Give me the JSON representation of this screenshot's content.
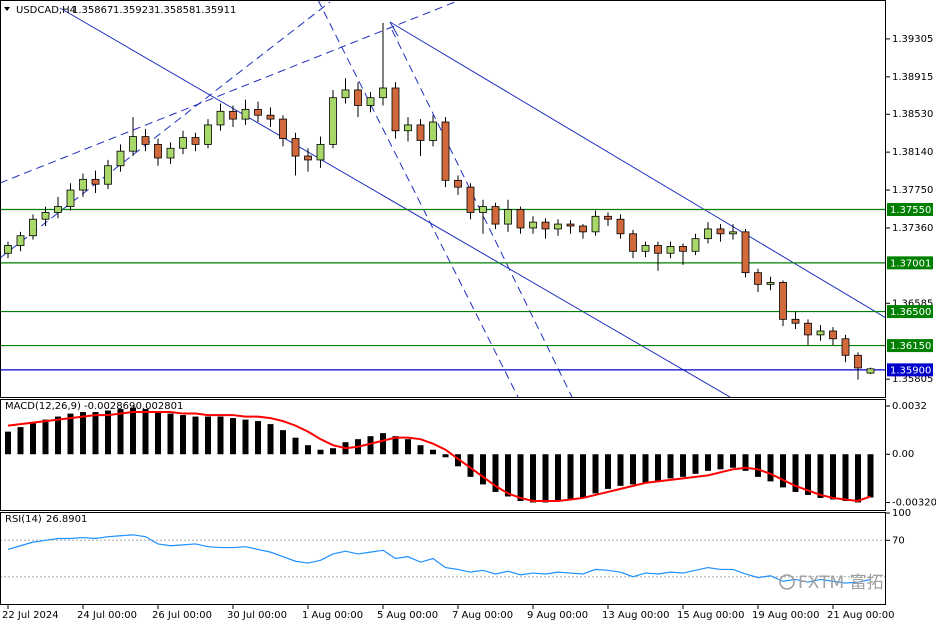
{
  "chart_data": [
    {
      "type": "candlestick",
      "symbol": "USDCAD,H4",
      "up_color": "#a8d86a",
      "down_color": "#d2693c",
      "ylim": [
        1.35621,
        1.39695
      ],
      "yticks": [
        1.39305,
        {
          "value": 1.38915,
          "label": "1.38915"
        },
        {
          "value": 1.3853,
          "label": "1.38530"
        },
        {
          "value": 1.3814,
          "label": "1.38140"
        },
        {
          "value": 1.3775,
          "label": "1.37750"
        },
        {
          "value": 1.3736,
          "label": "1.37360"
        },
        1.36585,
        1.35805
      ],
      "levels": [
        {
          "value": 1.3755,
          "label": "1.37550"
        },
        {
          "value": 1.37001,
          "label": "1.37001"
        },
        {
          "value": 1.365,
          "label": "1.36500"
        },
        {
          "value": 1.3615,
          "label": "1.36150"
        }
      ],
      "level_color": "#008000",
      "price_line": {
        "value": 1.359,
        "label": "1.35900"
      },
      "price_line_color": "#0000cd",
      "xticks": [
        {
          "value": 0,
          "label": "22 Jul 2024"
        },
        {
          "value": 6,
          "label": "24 Jul 00:00"
        },
        {
          "value": 12,
          "label": "26 Jul 00:00"
        },
        {
          "value": 18,
          "label": "30 Jul 00:00"
        },
        {
          "value": 24,
          "label": "1 Aug 00:00"
        },
        {
          "value": 30,
          "label": "5 Aug 00:00"
        },
        {
          "value": 36,
          "label": "7 Aug 00:00"
        },
        {
          "value": 42,
          "label": "9 Aug 00:00"
        },
        {
          "value": 48,
          "label": "13 Aug 00:00"
        },
        {
          "value": 54,
          "label": "15 Aug 00:00"
        },
        {
          "value": 60,
          "label": "19 Aug 00:00"
        },
        {
          "value": 66,
          "label": "21 Aug 00:00"
        }
      ],
      "ohlc": [
        [
          1.371,
          1.3722,
          1.3705,
          1.3718
        ],
        [
          1.3718,
          1.3732,
          1.3712,
          1.3728
        ],
        [
          1.3728,
          1.375,
          1.3724,
          1.3745
        ],
        [
          1.3745,
          1.3758,
          1.3738,
          1.3752
        ],
        [
          1.3752,
          1.3768,
          1.3746,
          1.3758
        ],
        [
          1.3758,
          1.3782,
          1.3754,
          1.3775
        ],
        [
          1.3775,
          1.3792,
          1.3768,
          1.3786
        ],
        [
          1.3786,
          1.3795,
          1.3772,
          1.3781
        ],
        [
          1.3781,
          1.3806,
          1.3776,
          1.38
        ],
        [
          1.38,
          1.3822,
          1.3794,
          1.3815
        ],
        [
          1.3815,
          1.385,
          1.381,
          1.383
        ],
        [
          1.383,
          1.3838,
          1.3815,
          1.3822
        ],
        [
          1.3822,
          1.3828,
          1.38,
          1.3808
        ],
        [
          1.3808,
          1.3824,
          1.3802,
          1.3818
        ],
        [
          1.3818,
          1.3836,
          1.3812,
          1.3829
        ],
        [
          1.3829,
          1.3834,
          1.3815,
          1.3822
        ],
        [
          1.3822,
          1.3848,
          1.3818,
          1.3842
        ],
        [
          1.3842,
          1.3864,
          1.3836,
          1.3856
        ],
        [
          1.3856,
          1.3862,
          1.384,
          1.3848
        ],
        [
          1.3848,
          1.3868,
          1.3842,
          1.3858
        ],
        [
          1.3858,
          1.3866,
          1.3845,
          1.3852
        ],
        [
          1.3852,
          1.386,
          1.384,
          1.3848
        ],
        [
          1.3848,
          1.3852,
          1.382,
          1.3828
        ],
        [
          1.3828,
          1.3834,
          1.379,
          1.381
        ],
        [
          1.381,
          1.3818,
          1.3794,
          1.3806
        ],
        [
          1.3806,
          1.383,
          1.3798,
          1.3822
        ],
        [
          1.3822,
          1.3878,
          1.3818,
          1.387
        ],
        [
          1.387,
          1.389,
          1.3864,
          1.3878
        ],
        [
          1.3878,
          1.3886,
          1.385,
          1.3862
        ],
        [
          1.3862,
          1.3876,
          1.3855,
          1.387
        ],
        [
          1.387,
          1.3947,
          1.3862,
          1.388
        ],
        [
          1.388,
          1.3886,
          1.3828,
          1.3836
        ],
        [
          1.3836,
          1.385,
          1.3825,
          1.3842
        ],
        [
          1.3842,
          1.3848,
          1.381,
          1.3826
        ],
        [
          1.3826,
          1.3852,
          1.382,
          1.3845
        ],
        [
          1.3845,
          1.385,
          1.3778,
          1.3785
        ],
        [
          1.3785,
          1.379,
          1.377,
          1.3778
        ],
        [
          1.3778,
          1.3782,
          1.3745,
          1.3752
        ],
        [
          1.3752,
          1.3765,
          1.373,
          1.3758
        ],
        [
          1.3758,
          1.3762,
          1.3735,
          1.374
        ],
        [
          1.374,
          1.3765,
          1.3732,
          1.3755
        ],
        [
          1.3755,
          1.3758,
          1.373,
          1.3736
        ],
        [
          1.3736,
          1.3748,
          1.373,
          1.3742
        ],
        [
          1.3742,
          1.3746,
          1.3725,
          1.3735
        ],
        [
          1.3735,
          1.3745,
          1.3728,
          1.374
        ],
        [
          1.374,
          1.3744,
          1.373,
          1.3738
        ],
        [
          1.3738,
          1.374,
          1.3725,
          1.3732
        ],
        [
          1.3732,
          1.3754,
          1.3728,
          1.3748
        ],
        [
          1.3748,
          1.3752,
          1.3738,
          1.3745
        ],
        [
          1.3745,
          1.375,
          1.3725,
          1.373
        ],
        [
          1.373,
          1.3734,
          1.3705,
          1.3712
        ],
        [
          1.3712,
          1.3722,
          1.3706,
          1.3718
        ],
        [
          1.3718,
          1.3722,
          1.3692,
          1.371
        ],
        [
          1.371,
          1.3722,
          1.3705,
          1.3717
        ],
        [
          1.3717,
          1.372,
          1.3698,
          1.3712
        ],
        [
          1.3712,
          1.373,
          1.3708,
          1.3725
        ],
        [
          1.3725,
          1.3742,
          1.372,
          1.3735
        ],
        [
          1.3735,
          1.374,
          1.3722,
          1.373
        ],
        [
          1.373,
          1.374,
          1.3724,
          1.3732
        ],
        [
          1.3732,
          1.3735,
          1.3685,
          1.369
        ],
        [
          1.369,
          1.3694,
          1.367,
          1.3678
        ],
        [
          1.3678,
          1.3686,
          1.3672,
          1.368
        ],
        [
          1.368,
          1.3682,
          1.3635,
          1.3642
        ],
        [
          1.3642,
          1.365,
          1.3632,
          1.3638
        ],
        [
          1.3638,
          1.3642,
          1.3615,
          1.3626
        ],
        [
          1.3626,
          1.3636,
          1.362,
          1.363
        ],
        [
          1.363,
          1.3634,
          1.3615,
          1.3622
        ],
        [
          1.3622,
          1.3626,
          1.3598,
          1.3605
        ],
        [
          1.3605,
          1.3608,
          1.358,
          1.3592
        ],
        [
          1.35867,
          1.35923,
          1.35858,
          1.35911
        ]
      ]
    },
    {
      "type": "macd",
      "name": "MACD(12,26,9)",
      "ylim": [
        -0.0037,
        0.0036
      ],
      "yticks": [
        0.0032,
        {
          "value": 0,
          "label": "0.00"
        },
        -0.003203
      ],
      "series": [
        {
          "name": "main",
          "color": "#000000",
          "values": [
            0.0015,
            0.0018,
            0.0021,
            0.0023,
            0.0025,
            0.0027,
            0.0028,
            0.0028,
            0.0029,
            0.003,
            0.0031,
            0.003,
            0.0028,
            0.0027,
            0.0026,
            0.0025,
            0.0025,
            0.0025,
            0.0024,
            0.0023,
            0.0022,
            0.002,
            0.0016,
            0.0011,
            0.0006,
            0.0003,
            0.0004,
            0.0008,
            0.001,
            0.0012,
            0.0014,
            0.0012,
            0.001,
            0.0006,
            0.0003,
            -0.0002,
            -0.0008,
            -0.0015,
            -0.002,
            -0.0025,
            -0.0028,
            -0.0031,
            -0.0032,
            -0.0032,
            -0.0031,
            -0.003,
            -0.0029,
            -0.0026,
            -0.0023,
            -0.0021,
            -0.002,
            -0.0019,
            -0.0018,
            -0.0016,
            -0.0015,
            -0.0013,
            -0.0011,
            -0.001,
            -0.0009,
            -0.0011,
            -0.0015,
            -0.0018,
            -0.0022,
            -0.0025,
            -0.0027,
            -0.0029,
            -0.003,
            -0.0031,
            -0.0032,
            -0.002869
          ]
        },
        {
          "name": "signal",
          "color": "#ff0000",
          "values": [
            0.0019,
            0.002,
            0.0021,
            0.0022,
            0.0023,
            0.0024,
            0.0025,
            0.0026,
            0.0026,
            0.0027,
            0.0028,
            0.0028,
            0.0028,
            0.0028,
            0.0027,
            0.0027,
            0.0026,
            0.0026,
            0.0026,
            0.0025,
            0.0025,
            0.0024,
            0.0022,
            0.0019,
            0.0015,
            0.001,
            0.0006,
            0.0004,
            0.0005,
            0.0007,
            0.0009,
            0.0011,
            0.0011,
            0.001,
            0.0007,
            0.0003,
            -0.0003,
            -0.0009,
            -0.0015,
            -0.0021,
            -0.0026,
            -0.0029,
            -0.0031,
            -0.0031,
            -0.0031,
            -0.003,
            -0.0029,
            -0.0027,
            -0.0025,
            -0.0023,
            -0.0021,
            -0.0019,
            -0.0018,
            -0.0017,
            -0.0016,
            -0.0015,
            -0.0014,
            -0.0012,
            -0.001,
            -0.0009,
            -0.001,
            -0.0013,
            -0.0017,
            -0.0021,
            -0.0024,
            -0.0027,
            -0.0029,
            -0.003,
            -0.0031,
            -0.002801
          ]
        }
      ]
    },
    {
      "type": "line",
      "name": "RSI(14)",
      "color": "#1e90ff",
      "ylim": [
        0,
        100
      ],
      "yticks": [
        100,
        70
      ],
      "levels": [
        70,
        30
      ],
      "values": [
        60,
        64,
        68,
        70,
        72,
        72,
        73,
        72,
        74,
        75,
        76,
        74,
        66,
        64,
        65,
        66,
        63,
        62,
        62,
        63,
        60,
        57,
        52,
        47,
        45,
        48,
        55,
        58,
        55,
        57,
        59,
        50,
        52,
        46,
        50,
        40,
        38,
        35,
        37,
        33,
        36,
        32,
        34,
        33,
        35,
        34,
        33,
        38,
        37,
        35,
        30,
        34,
        33,
        35,
        34,
        37,
        40,
        38,
        38,
        33,
        29,
        31,
        25,
        27,
        24,
        27,
        25,
        23,
        24,
        26.8901
      ]
    }
  ],
  "watermark": "FXTM 富拓"
}
